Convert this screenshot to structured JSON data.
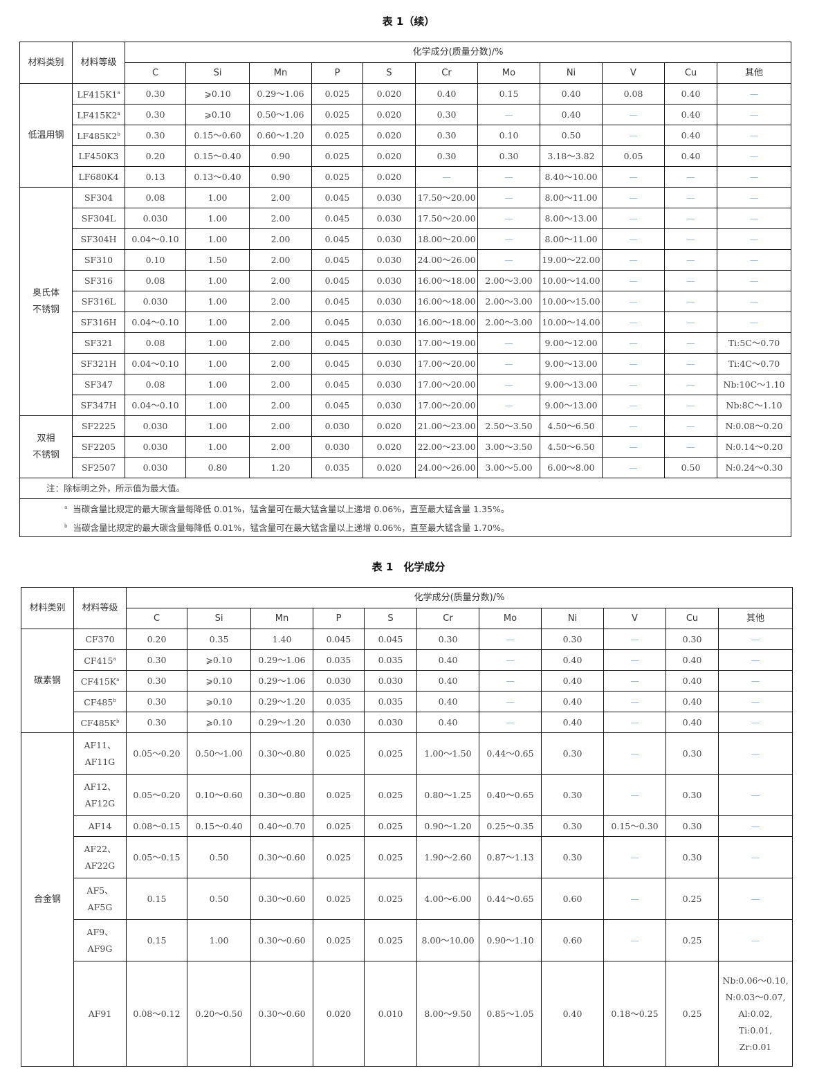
{
  "table1": {
    "caption": "表 1（续）",
    "head": {
      "category": "材料类别",
      "grade": "材料等级",
      "group": "化学成分(质量分数)/%",
      "elements": [
        "C",
        "Si",
        "Mn",
        "P",
        "S",
        "Cr",
        "Mo",
        "Ni",
        "V",
        "Cu",
        "其他"
      ]
    },
    "groups": [
      {
        "category": "低温用钢",
        "rows": [
          {
            "grade": "LF415K1",
            "sup": "a",
            "v": [
              "0.30",
              "⩾0.10",
              "0.29～1.06",
              "0.025",
              "0.020",
              "0.40",
              "0.15",
              "0.40",
              "0.08",
              "0.40",
              "—"
            ]
          },
          {
            "grade": "LF415K2",
            "sup": "a",
            "v": [
              "0.30",
              "⩾0.10",
              "0.50～1.06",
              "0.025",
              "0.020",
              "0.30",
              "—",
              "0.40",
              "—",
              "0.40",
              "—"
            ]
          },
          {
            "grade": "LF485K2",
            "sup": "b",
            "v": [
              "0.30",
              "0.15～0.60",
              "0.60～1.20",
              "0.025",
              "0.020",
              "0.30",
              "0.10",
              "0.50",
              "—",
              "0.40",
              "—"
            ]
          },
          {
            "grade": "LF450K3",
            "v": [
              "0.20",
              "0.15～0.40",
              "0.90",
              "0.025",
              "0.020",
              "0.30",
              "0.30",
              "3.18～3.82",
              "0.05",
              "0.40",
              "—"
            ]
          },
          {
            "grade": "LF680K4",
            "v": [
              "0.13",
              "0.13～0.40",
              "0.90",
              "0.025",
              "0.020",
              "—",
              "—",
              "8.40～10.00",
              "—",
              "—",
              "—"
            ]
          }
        ]
      },
      {
        "category": "奥氏体\n不锈钢",
        "rows": [
          {
            "grade": "SF304",
            "v": [
              "0.08",
              "1.00",
              "2.00",
              "0.045",
              "0.030",
              "17.50～20.00",
              "—",
              "8.00～11.00",
              "—",
              "—",
              "—"
            ]
          },
          {
            "grade": "SF304L",
            "v": [
              "0.030",
              "1.00",
              "2.00",
              "0.045",
              "0.030",
              "17.50～20.00",
              "—",
              "8.00～13.00",
              "—",
              "—",
              "—"
            ]
          },
          {
            "grade": "SF304H",
            "v": [
              "0.04～0.10",
              "1.00",
              "2.00",
              "0.045",
              "0.030",
              "18.00～20.00",
              "—",
              "8.00～11.00",
              "—",
              "—",
              "—"
            ]
          },
          {
            "grade": "SF310",
            "v": [
              "0.10",
              "1.50",
              "2.00",
              "0.045",
              "0.030",
              "24.00～26.00",
              "—",
              "19.00～22.00",
              "—",
              "—",
              "—"
            ]
          },
          {
            "grade": "SF316",
            "v": [
              "0.08",
              "1.00",
              "2.00",
              "0.045",
              "0.030",
              "16.00～18.00",
              "2.00～3.00",
              "10.00～14.00",
              "—",
              "—",
              "—"
            ]
          },
          {
            "grade": "SF316L",
            "v": [
              "0.030",
              "1.00",
              "2.00",
              "0.045",
              "0.030",
              "16.00～18.00",
              "2.00～3.00",
              "10.00～15.00",
              "—",
              "—",
              "—"
            ]
          },
          {
            "grade": "SF316H",
            "v": [
              "0.04～0.10",
              "1.00",
              "2.00",
              "0.045",
              "0.030",
              "16.00～18.00",
              "2.00～3.00",
              "10.00～14.00",
              "—",
              "—",
              "—"
            ]
          },
          {
            "grade": "SF321",
            "v": [
              "0.08",
              "1.00",
              "2.00",
              "0.045",
              "0.030",
              "17.00～19.00",
              "—",
              "9.00～12.00",
              "—",
              "—",
              "Ti:5C～0.70"
            ]
          },
          {
            "grade": "SF321H",
            "v": [
              "0.04～0.10",
              "1.00",
              "2.00",
              "0.045",
              "0.030",
              "17.00～20.00",
              "—",
              "9.00～13.00",
              "—",
              "—",
              "Ti:4C～0.70"
            ]
          },
          {
            "grade": "SF347",
            "v": [
              "0.08",
              "1.00",
              "2.00",
              "0.045",
              "0.030",
              "17.00～20.00",
              "—",
              "9.00～13.00",
              "—",
              "—",
              "Nb:10C～1.10"
            ]
          },
          {
            "grade": "SF347H",
            "v": [
              "0.04～0.10",
              "1.00",
              "2.00",
              "0.045",
              "0.030",
              "17.00～20.00",
              "—",
              "9.00～13.00",
              "—",
              "—",
              "Nb:8C～1.10"
            ]
          }
        ]
      },
      {
        "category": "双相\n不锈钢",
        "rows": [
          {
            "grade": "SF2225",
            "v": [
              "0.030",
              "1.00",
              "2.00",
              "0.030",
              "0.020",
              "21.00～23.00",
              "2.50～3.50",
              "4.50～6.50",
              "—",
              "—",
              "N:0.08～0.20"
            ]
          },
          {
            "grade": "SF2205",
            "v": [
              "0.030",
              "1.00",
              "2.00",
              "0.030",
              "0.020",
              "22.00～23.00",
              "3.00～3.50",
              "4.50～6.50",
              "—",
              "—",
              "N:0.14～0.20"
            ]
          },
          {
            "grade": "SF2507",
            "v": [
              "0.030",
              "0.80",
              "1.20",
              "0.035",
              "0.020",
              "24.00～26.00",
              "3.00～5.00",
              "6.00～8.00",
              "—",
              "0.50",
              "N:0.24～0.30"
            ]
          }
        ]
      }
    ],
    "note": "注：除标明之外，所示值为最大值。",
    "footnotes": [
      {
        "mark": "a",
        "text": "当碳含量比规定的最大碳含量每降低 0.01%，锰含量可在最大锰含量以上递增 0.06%，直至最大锰含量 1.35%。"
      },
      {
        "mark": "b",
        "text": "当碳含量比规定的最大碳含量每降低 0.01%，锰含量可在最大锰含量以上递增 0.06%，直至最大锰含量 1.70%。"
      }
    ]
  },
  "table2": {
    "caption": "表 1　化学成分",
    "head": {
      "category": "材料类别",
      "grade": "材料等级",
      "group": "化学成分(质量分数)/%",
      "elements": [
        "C",
        "Si",
        "Mn",
        "P",
        "S",
        "Cr",
        "Mo",
        "Ni",
        "V",
        "Cu",
        "其他"
      ]
    },
    "groups": [
      {
        "category": "碳素钢",
        "rows": [
          {
            "grade": "CF370",
            "v": [
              "0.20",
              "0.35",
              "1.40",
              "0.045",
              "0.045",
              "0.30",
              "—",
              "0.30",
              "—",
              "0.30",
              "—"
            ]
          },
          {
            "grade": "CF415",
            "sup": "a",
            "v": [
              "0.30",
              "⩾0.10",
              "0.29～1.06",
              "0.035",
              "0.035",
              "0.40",
              "—",
              "0.40",
              "—",
              "0.40",
              "—"
            ]
          },
          {
            "grade": "CF415K",
            "sup": "a",
            "v": [
              "0.30",
              "⩾0.10",
              "0.29～1.06",
              "0.030",
              "0.030",
              "0.40",
              "—",
              "0.40",
              "—",
              "0.40",
              "—"
            ]
          },
          {
            "grade": "CF485",
            "sup": "b",
            "v": [
              "0.30",
              "⩾0.10",
              "0.29～1.20",
              "0.035",
              "0.035",
              "0.40",
              "—",
              "0.40",
              "—",
              "0.40",
              "—"
            ]
          },
          {
            "grade": "CF485K",
            "sup": "b",
            "v": [
              "0.30",
              "⩾0.10",
              "0.29～1.20",
              "0.030",
              "0.030",
              "0.40",
              "—",
              "0.40",
              "—",
              "0.40",
              "—"
            ]
          }
        ]
      },
      {
        "category": "合金钢",
        "rows": [
          {
            "grade": "AF11、\nAF11G",
            "v": [
              "0.05～0.20",
              "0.50～1.00",
              "0.30～0.80",
              "0.025",
              "0.025",
              "1.00～1.50",
              "0.44～0.65",
              "0.30",
              "—",
              "0.30",
              "—"
            ]
          },
          {
            "grade": "AF12、\nAF12G",
            "v": [
              "0.05～0.20",
              "0.10～0.60",
              "0.30～0.80",
              "0.025",
              "0.025",
              "0.80～1.25",
              "0.40～0.65",
              "0.30",
              "—",
              "0.30",
              "—"
            ]
          },
          {
            "grade": "AF14",
            "v": [
              "0.08～0.15",
              "0.15～0.40",
              "0.40～0.70",
              "0.025",
              "0.025",
              "0.90～1.20",
              "0.25～0.35",
              "0.30",
              "0.15～0.30",
              "0.30",
              "—"
            ]
          },
          {
            "grade": "AF22、\nAF22G",
            "v": [
              "0.05～0.15",
              "0.50",
              "0.30～0.60",
              "0.025",
              "0.025",
              "1.90～2.60",
              "0.87～1.13",
              "0.30",
              "—",
              "0.30",
              "—"
            ]
          },
          {
            "grade": "AF5、\nAF5G",
            "v": [
              "0.15",
              "0.50",
              "0.30～0.60",
              "0.025",
              "0.025",
              "4.00～6.00",
              "0.44～0.65",
              "0.60",
              "—",
              "0.25",
              "—"
            ]
          },
          {
            "grade": "AF9、\nAF9G",
            "v": [
              "0.15",
              "1.00",
              "0.30～0.60",
              "0.025",
              "0.025",
              "8.00～10.00",
              "0.90～1.10",
              "0.60",
              "—",
              "0.25",
              "—"
            ]
          },
          {
            "grade": "AF91",
            "v": [
              "0.08～0.12",
              "0.20～0.50",
              "0.30～0.60",
              "0.020",
              "0.010",
              "8.00～9.50",
              "0.85～1.05",
              "0.40",
              "0.18～0.25",
              "0.25",
              "Nb:0.06～0.10,\nN:0.03～0.07,\nAl:0.02,\nTi:0.01,\nZr:0.01"
            ]
          }
        ]
      }
    ]
  }
}
